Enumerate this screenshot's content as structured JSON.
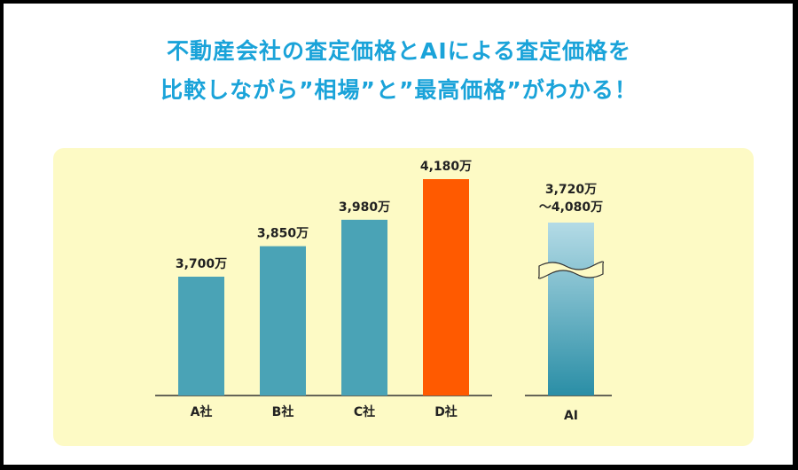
{
  "headline": {
    "line1": "不動産会社の査定価格とAIによる査定価格を",
    "line2": "比較しながら”相場”と”最高価格”がわかる！"
  },
  "colors": {
    "bar": "#4aa3b6",
    "highlight": "#ff5a00",
    "ai_top": "#b4dbe6",
    "ai_bottom": "#2a8ea6",
    "headline": "#1aa3d9",
    "panel": "#fdfac5"
  },
  "chart_data": {
    "type": "bar",
    "categories": [
      "A社",
      "B社",
      "C社",
      "D社"
    ],
    "values": [
      3700,
      3850,
      3980,
      4180
    ],
    "value_labels": [
      "3,700万",
      "3,850万",
      "3,980万",
      "4,180万"
    ],
    "highlight_index": 3,
    "ai": {
      "label": "AI",
      "range": [
        3720,
        4080
      ],
      "range_label_line1": "3,720万",
      "range_label_line2": "〜4,080万",
      "axis_break": true
    },
    "title": "",
    "xlabel": "",
    "ylabel": "",
    "grid": false
  }
}
